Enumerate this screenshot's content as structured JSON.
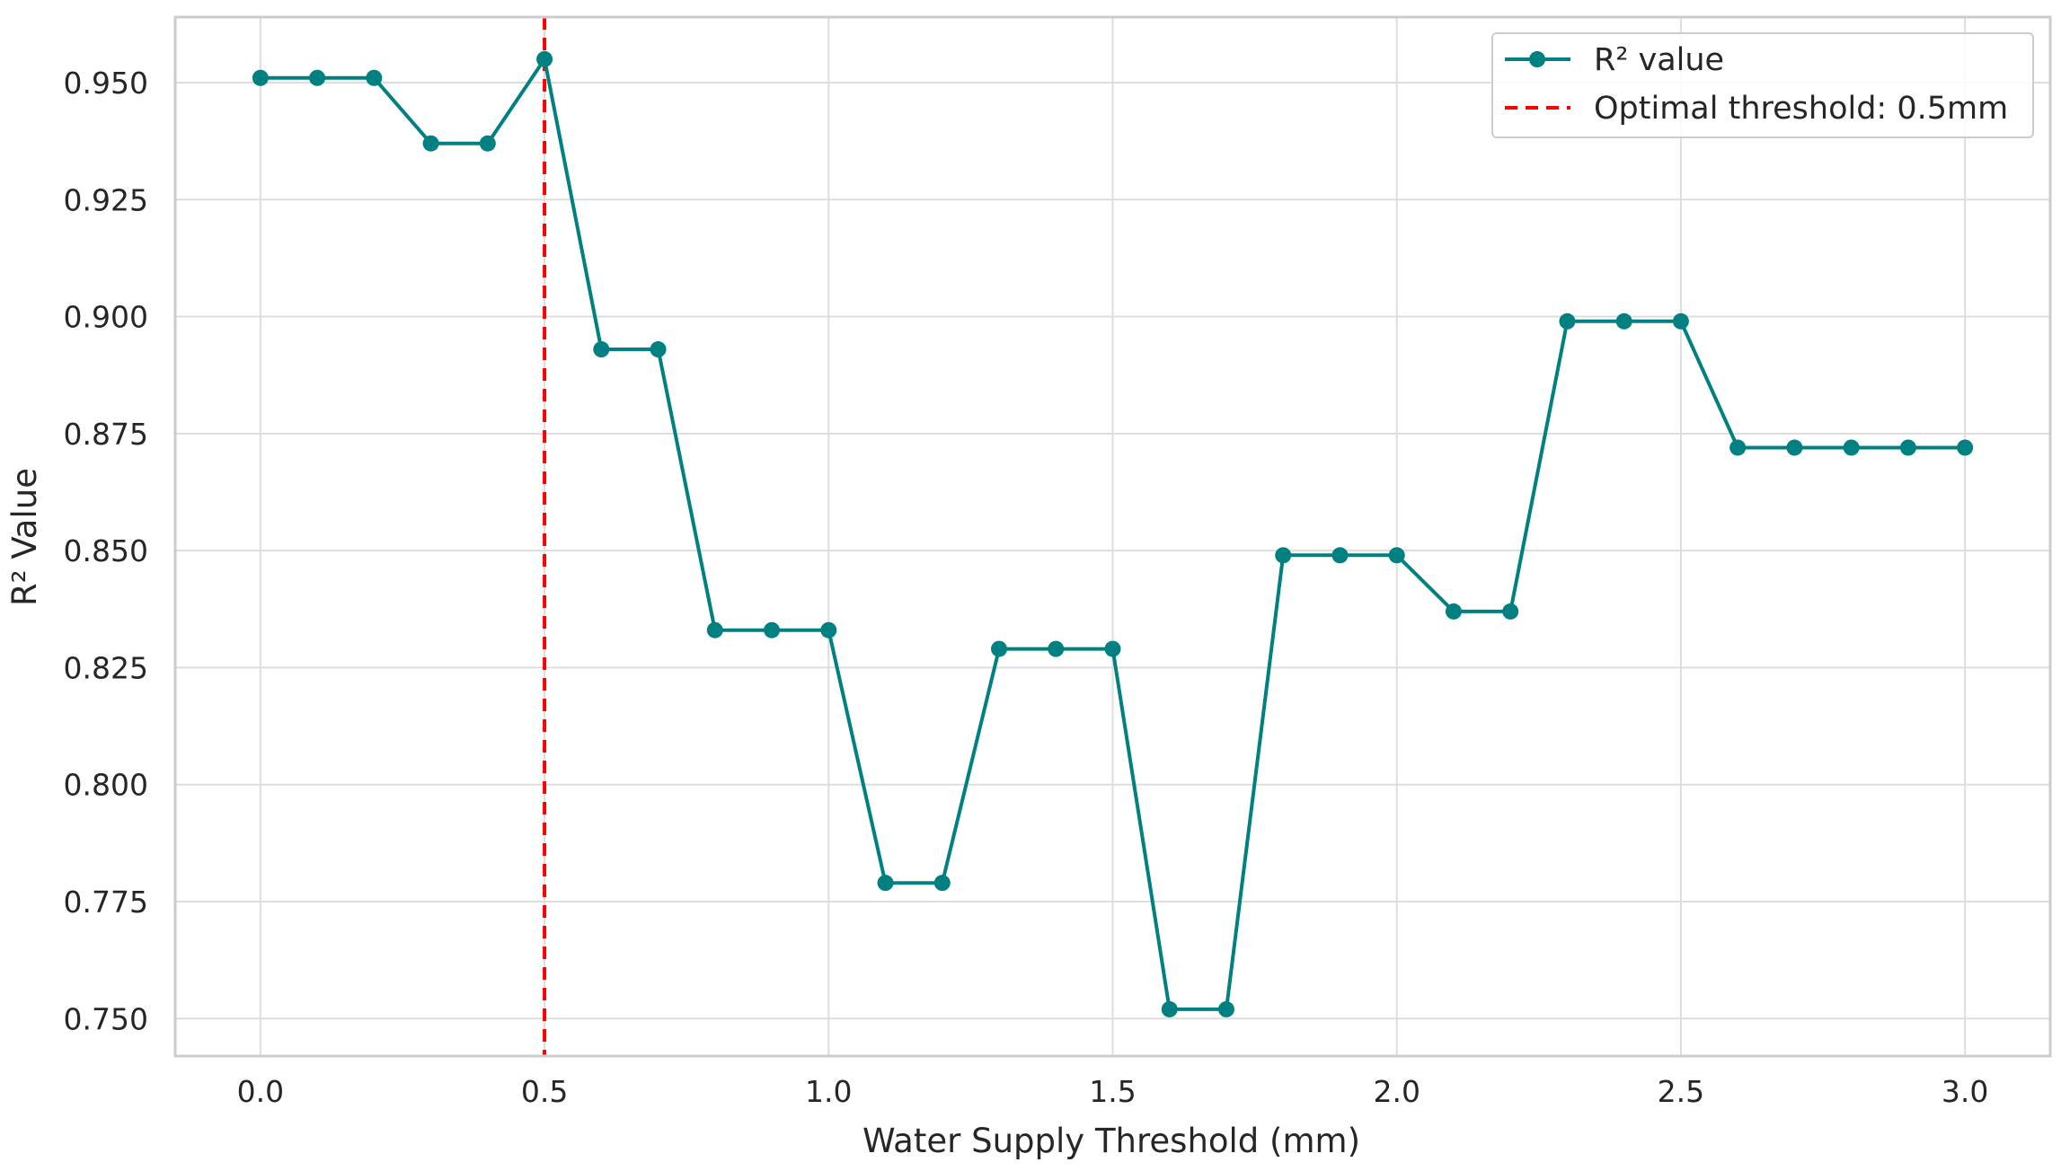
{
  "chart_data": {
    "type": "line",
    "title": "",
    "xlabel": "Water Supply Threshold (mm)",
    "ylabel": "R² Value",
    "xlim": [
      -0.15,
      3.15
    ],
    "ylim": [
      0.742,
      0.964
    ],
    "xticks": [
      0.0,
      0.5,
      1.0,
      1.5,
      2.0,
      2.5,
      3.0
    ],
    "xtick_labels": [
      "0.0",
      "0.5",
      "1.0",
      "1.5",
      "2.0",
      "2.5",
      "3.0"
    ],
    "yticks": [
      0.75,
      0.775,
      0.8,
      0.825,
      0.85,
      0.875,
      0.9,
      0.925,
      0.95
    ],
    "ytick_labels": [
      "0.750",
      "0.775",
      "0.800",
      "0.825",
      "0.850",
      "0.875",
      "0.900",
      "0.925",
      "0.950"
    ],
    "grid": true,
    "legend_position": "top-right",
    "series": [
      {
        "name": "R² value",
        "color": "#008080",
        "marker": "circle",
        "x": [
          0.0,
          0.1,
          0.2,
          0.3,
          0.4,
          0.5,
          0.6,
          0.7,
          0.8,
          0.9,
          1.0,
          1.1,
          1.2,
          1.3,
          1.4,
          1.5,
          1.6,
          1.7,
          1.8,
          1.9,
          2.0,
          2.1,
          2.2,
          2.3,
          2.4,
          2.5,
          2.6,
          2.7,
          2.8,
          2.9,
          3.0
        ],
        "values": [
          0.951,
          0.951,
          0.951,
          0.937,
          0.937,
          0.955,
          0.893,
          0.893,
          0.833,
          0.833,
          0.833,
          0.779,
          0.779,
          0.829,
          0.829,
          0.829,
          0.752,
          0.752,
          0.849,
          0.849,
          0.849,
          0.837,
          0.837,
          0.899,
          0.899,
          0.899,
          0.872,
          0.872,
          0.872,
          0.872,
          0.872
        ]
      }
    ],
    "reference_lines": [
      {
        "name": "Optimal threshold: 0.5mm",
        "orientation": "vertical",
        "x": 0.5,
        "color": "#ff0000",
        "style": "dashed"
      }
    ],
    "colors": {
      "grid": "#dddddd",
      "spine": "#cccccc",
      "text": "#262626"
    }
  }
}
